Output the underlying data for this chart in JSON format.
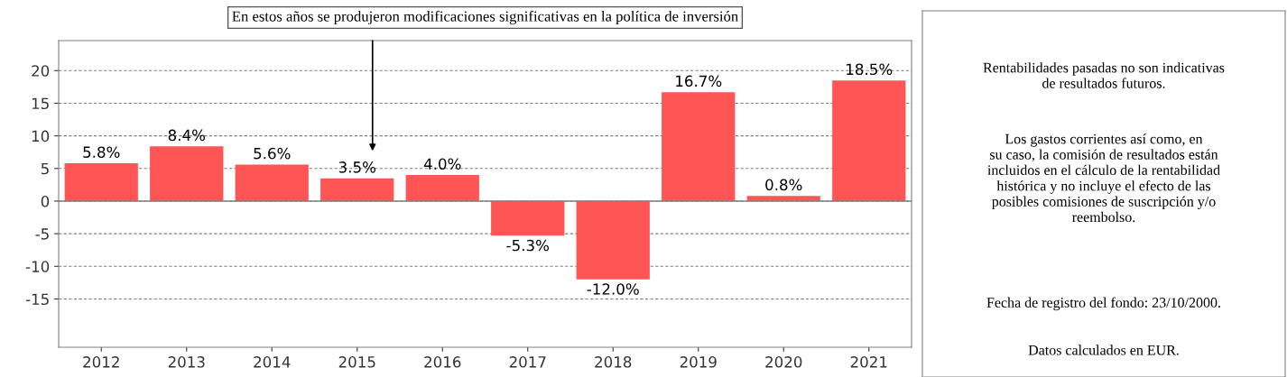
{
  "chart_data": {
    "type": "bar",
    "categories": [
      "2012",
      "2013",
      "2014",
      "2015",
      "2016",
      "2017",
      "2018",
      "2019",
      "2020",
      "2021"
    ],
    "values": [
      5.8,
      8.4,
      5.6,
      3.5,
      4.0,
      -5.3,
      -12.0,
      16.7,
      0.8,
      18.5
    ],
    "value_labels": [
      "5.8%",
      "8.4%",
      "5.6%",
      "3.5%",
      "4.0%",
      "-5.3%",
      "-12.0%",
      "16.7%",
      "0.8%",
      "18.5%"
    ],
    "color": "#ff5555",
    "ylim": [
      -22.4,
      24.6
    ],
    "yticks": [
      -15,
      -10,
      -5,
      0,
      5,
      10,
      15,
      20
    ],
    "grid": "y",
    "ref_lines": [
      {
        "axis": "y",
        "value": 0,
        "color": "#808080"
      }
    ],
    "annotations": [
      "En estos años se produjeron modificaciones significativas en la política de inversión",
      "Rentabilidades pasadas no son indicativas\nde resultados futuros.",
      "Los gastos corrientes así como, en\nsu caso, la comisión de resultados están\nincluidos en el cálculo de la rentabilidad\nhistórica y no incluye el efecto de las\nposibles comisiones de suscripción y/o\nreembolso.",
      "Fecha de registro del fondo: 23/10/2000.",
      "Datos calculados en EUR."
    ]
  }
}
